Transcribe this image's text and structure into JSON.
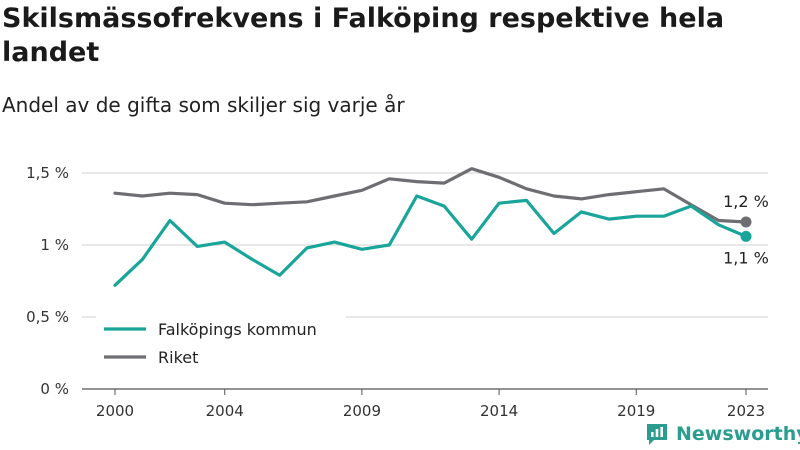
{
  "title": "Skilsmässofrekvens i Falköping respektive hela landet",
  "subtitle": "Andel av de gifta som skiljer sig varje år",
  "brand": {
    "name": "Newsworthy",
    "icon": "newsworthy-logo-icon",
    "color": "#2a9d8f"
  },
  "chart_data": {
    "type": "line",
    "x": [
      2000,
      2001,
      2002,
      2003,
      2004,
      2005,
      2006,
      2007,
      2008,
      2009,
      2010,
      2011,
      2012,
      2013,
      2014,
      2015,
      2016,
      2017,
      2018,
      2019,
      2020,
      2021,
      2022,
      2023
    ],
    "x_ticks": [
      {
        "value": 2000,
        "label": "2000"
      },
      {
        "value": 2004,
        "label": "2004"
      },
      {
        "value": 2009,
        "label": "2009"
      },
      {
        "value": 2014,
        "label": "2014"
      },
      {
        "value": 2019,
        "label": "2019"
      },
      {
        "value": 2023,
        "label": "2023"
      }
    ],
    "y_ticks": [
      {
        "value": 0,
        "label": "0 %"
      },
      {
        "value": 0.5,
        "label": "0,5 %"
      },
      {
        "value": 1.0,
        "label": "1 %"
      },
      {
        "value": 1.5,
        "label": "1,5 %"
      }
    ],
    "ylim": [
      0,
      1.5
    ],
    "xlim": [
      2000,
      2023
    ],
    "grid": "horizontal",
    "legend_position": "bottom-left",
    "series": [
      {
        "name": "Falköpings kommun",
        "color": "#1aa59a",
        "values": [
          0.72,
          0.9,
          1.17,
          0.99,
          1.02,
          0.9,
          0.79,
          0.98,
          1.02,
          0.97,
          1.0,
          1.34,
          1.27,
          1.04,
          1.29,
          1.31,
          1.08,
          1.23,
          1.18,
          1.2,
          1.2,
          1.27,
          1.14,
          1.06
        ],
        "end_label": "1,1 %",
        "end_label_position": "below"
      },
      {
        "name": "Riket",
        "color": "#6e6e72",
        "values": [
          1.36,
          1.34,
          1.36,
          1.35,
          1.29,
          1.28,
          1.29,
          1.3,
          1.34,
          1.38,
          1.46,
          1.44,
          1.43,
          1.53,
          1.47,
          1.39,
          1.34,
          1.32,
          1.35,
          1.37,
          1.39,
          1.28,
          1.17,
          1.16
        ],
        "end_label": "1,2 %",
        "end_label_position": "above"
      }
    ]
  }
}
